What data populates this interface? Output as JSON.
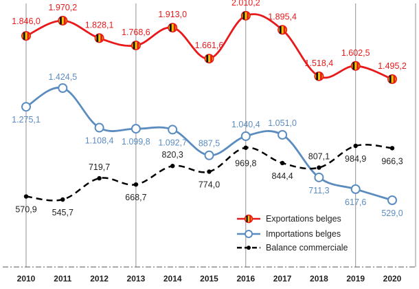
{
  "chart_data": {
    "type": "line",
    "title": "",
    "xlabel": "",
    "ylabel": "",
    "x": [
      "2010",
      "2011",
      "2012",
      "2013",
      "2014",
      "2015",
      "2016",
      "2017",
      "2018",
      "2019",
      "2020"
    ],
    "grid": "vertical lines at 2010, 2013, 2016, 2019",
    "legend_position": "bottom-right",
    "series": [
      {
        "name": "Exportations belges",
        "color": "#e8191a",
        "marker": "belgian-flag-dot",
        "values": [
          1846.0,
          1970.2,
          1828.1,
          1768.6,
          1913.0,
          1661.6,
          2010.2,
          1895.4,
          1518.4,
          1602.5,
          1495.2
        ],
        "labels": [
          "1.846,0",
          "1.970,2",
          "1.828,1",
          "1.768,6",
          "1.913,0",
          "1.661,6",
          "2.010,2",
          "1.895,4",
          "1.518,4",
          "1.602,5",
          "1.495,2"
        ]
      },
      {
        "name": "Importations belges",
        "color": "#5b8cc0",
        "marker": "open-circle",
        "values": [
          1275.1,
          1424.5,
          1108.4,
          1099.8,
          1092.7,
          887.5,
          1040.4,
          1051.0,
          711.3,
          617.6,
          529.0
        ],
        "labels": [
          "1.275,1",
          "1.424,5",
          "1.108,4",
          "1.099,8",
          "1.092,7",
          "887,5",
          "1.040,4",
          "1.051,0",
          "711,3",
          "617,6",
          "529,0"
        ]
      },
      {
        "name": "Balance commerciale",
        "color": "#000000",
        "marker": "dot",
        "line_style": "dashed",
        "values": [
          570.9,
          545.7,
          719.7,
          668.7,
          820.3,
          774.0,
          969.8,
          844.4,
          807.1,
          984.9,
          966.3
        ],
        "labels": [
          "570,9",
          "545,7",
          "719,7",
          "668,7",
          "820,3",
          "774,0",
          "969,8",
          "844,4",
          "807,1",
          "984,9",
          "966,3"
        ]
      }
    ]
  }
}
